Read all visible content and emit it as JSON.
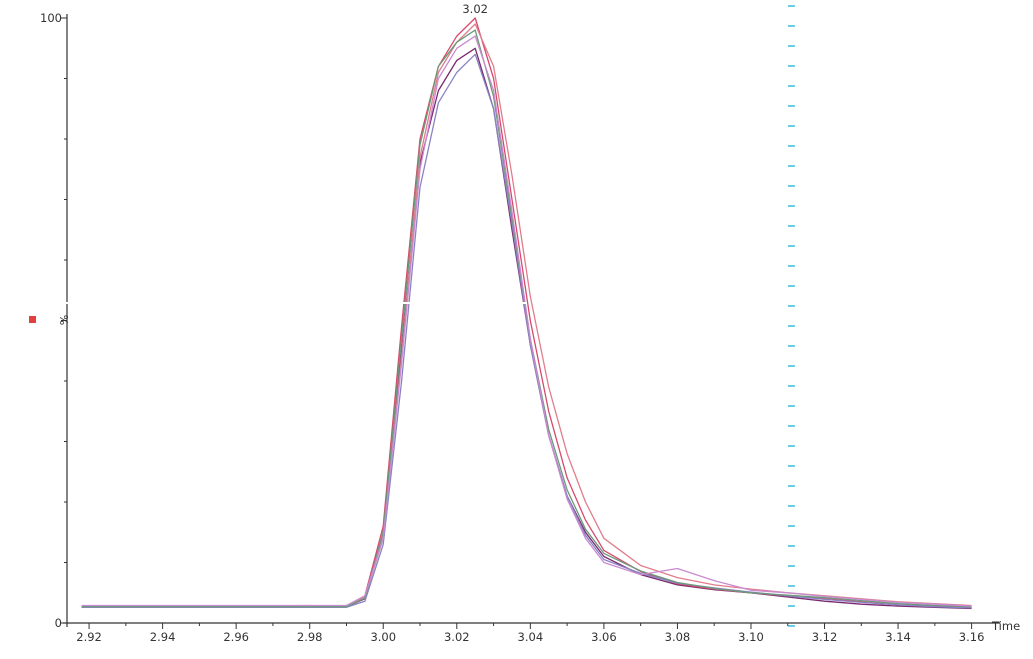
{
  "chart_data": {
    "type": "line",
    "xlabel": "Time",
    "ylabel": "%",
    "xlim": [
      2.914,
      3.165
    ],
    "ylim": [
      0,
      100
    ],
    "x_ticks": [
      "2.92",
      "2.94",
      "2.96",
      "2.98",
      "3.00",
      "3.02",
      "3.04",
      "3.06",
      "3.08",
      "3.10",
      "3.12",
      "3.14",
      "3.16"
    ],
    "y_ticks": [
      "0",
      "100"
    ],
    "peak_annotation": {
      "x": 3.025,
      "y": 100,
      "text": "3.02"
    },
    "marker_line": {
      "x": 3.111,
      "color": "#2ab8d6"
    },
    "legend_marker_color": "#e04040",
    "colors": {
      "axis": "#333333",
      "split": "#ffffff"
    },
    "series": [
      {
        "color": "#7a2a70",
        "x": [
          2.918,
          2.94,
          2.96,
          2.98,
          2.99,
          2.995,
          3.0,
          3.005,
          3.01,
          3.015,
          3.02,
          3.025,
          3.03,
          3.035,
          3.04,
          3.045,
          3.05,
          3.055,
          3.06,
          3.07,
          3.08,
          3.09,
          3.1,
          3.11,
          3.12,
          3.13,
          3.14,
          3.15,
          3.16
        ],
        "y": [
          2.6,
          2.6,
          2.6,
          2.7,
          2.7,
          4,
          15,
          45,
          76,
          88,
          93,
          95,
          85,
          65,
          46,
          31,
          21,
          15,
          11,
          8,
          6.3,
          5.5,
          5,
          4.3,
          3.6,
          3.1,
          2.8,
          2.6,
          2.4
        ]
      },
      {
        "color": "#d64b6b",
        "x": [
          2.918,
          2.94,
          2.96,
          2.98,
          2.99,
          2.995,
          3.0,
          3.005,
          3.01,
          3.015,
          3.02,
          3.025,
          3.03,
          3.035,
          3.04,
          3.045,
          3.05,
          3.055,
          3.06,
          3.07,
          3.08,
          3.09,
          3.1,
          3.11,
          3.12,
          3.13,
          3.14,
          3.15,
          3.16
        ],
        "y": [
          2.7,
          2.7,
          2.7,
          2.8,
          2.7,
          4.5,
          16,
          49,
          80,
          92,
          97,
          100,
          90,
          70,
          50,
          35,
          24,
          17,
          12,
          8.5,
          6.5,
          5.6,
          5,
          4.5,
          4,
          3.5,
          3,
          2.8,
          2.6
        ]
      },
      {
        "color": "#e07d8c",
        "x": [
          2.918,
          2.94,
          2.96,
          2.98,
          2.99,
          2.995,
          3.0,
          3.005,
          3.01,
          3.015,
          3.02,
          3.025,
          3.03,
          3.035,
          3.04,
          3.045,
          3.05,
          3.055,
          3.06,
          3.07,
          3.08,
          3.09,
          3.1,
          3.11,
          3.12,
          3.13,
          3.14,
          3.15,
          3.16
        ],
        "y": [
          2.8,
          2.8,
          2.8,
          2.9,
          2.8,
          4.2,
          14,
          44,
          77,
          91,
          96,
          99,
          92,
          74,
          54,
          39,
          28,
          20,
          14,
          9.5,
          7.5,
          6.3,
          5.6,
          5,
          4.5,
          4,
          3.5,
          3.2,
          2.9
        ]
      },
      {
        "color": "#8a83c4",
        "x": [
          2.918,
          2.94,
          2.96,
          2.98,
          2.99,
          2.995,
          3.0,
          3.005,
          3.01,
          3.015,
          3.02,
          3.025,
          3.03,
          3.035,
          3.04,
          3.045,
          3.05,
          3.055,
          3.06,
          3.07,
          3.08,
          3.09,
          3.1,
          3.11,
          3.12,
          3.13,
          3.14,
          3.15,
          3.16
        ],
        "y": [
          2.6,
          2.6,
          2.6,
          2.6,
          2.6,
          3.6,
          13,
          40,
          72,
          86,
          91,
          94,
          85,
          66,
          46,
          31,
          21,
          14.5,
          10.5,
          8.2,
          6.6,
          5.8,
          5.1,
          4.5,
          3.9,
          3.4,
          3,
          2.7,
          2.5
        ]
      },
      {
        "color": "#6a9a7a",
        "x": [
          2.918,
          2.94,
          2.96,
          2.98,
          2.99,
          2.995,
          3.0,
          3.005,
          3.01,
          3.015,
          3.02,
          3.025,
          3.03,
          3.035,
          3.04,
          3.045,
          3.05,
          3.055,
          3.06,
          3.07,
          3.08,
          3.09,
          3.1,
          3.11,
          3.12,
          3.13,
          3.14,
          3.15,
          3.16
        ],
        "y": [
          2.7,
          2.7,
          2.7,
          2.7,
          2.7,
          4.1,
          15,
          47,
          79,
          92,
          96,
          98,
          87,
          67,
          47,
          32,
          22,
          15.5,
          11.5,
          8.6,
          6.7,
          5.7,
          5,
          4.6,
          4.2,
          3.7,
          3.2,
          2.9,
          2.7
        ]
      },
      {
        "color": "#c98ad0",
        "x": [
          2.918,
          2.94,
          2.96,
          2.98,
          2.99,
          2.995,
          3.0,
          3.005,
          3.01,
          3.015,
          3.02,
          3.025,
          3.03,
          3.035,
          3.04,
          3.045,
          3.05,
          3.055,
          3.06,
          3.07,
          3.08,
          3.09,
          3.1,
          3.11,
          3.12,
          3.13,
          3.14,
          3.15,
          3.16
        ],
        "y": [
          2.9,
          2.9,
          2.9,
          2.9,
          2.9,
          4.5,
          14,
          43,
          75,
          90,
          95,
          97,
          88,
          68,
          47,
          31,
          20.5,
          14,
          10,
          8,
          9,
          7,
          5.4,
          5,
          4.4,
          3.9,
          3.4,
          3.1,
          2.8
        ]
      }
    ]
  }
}
